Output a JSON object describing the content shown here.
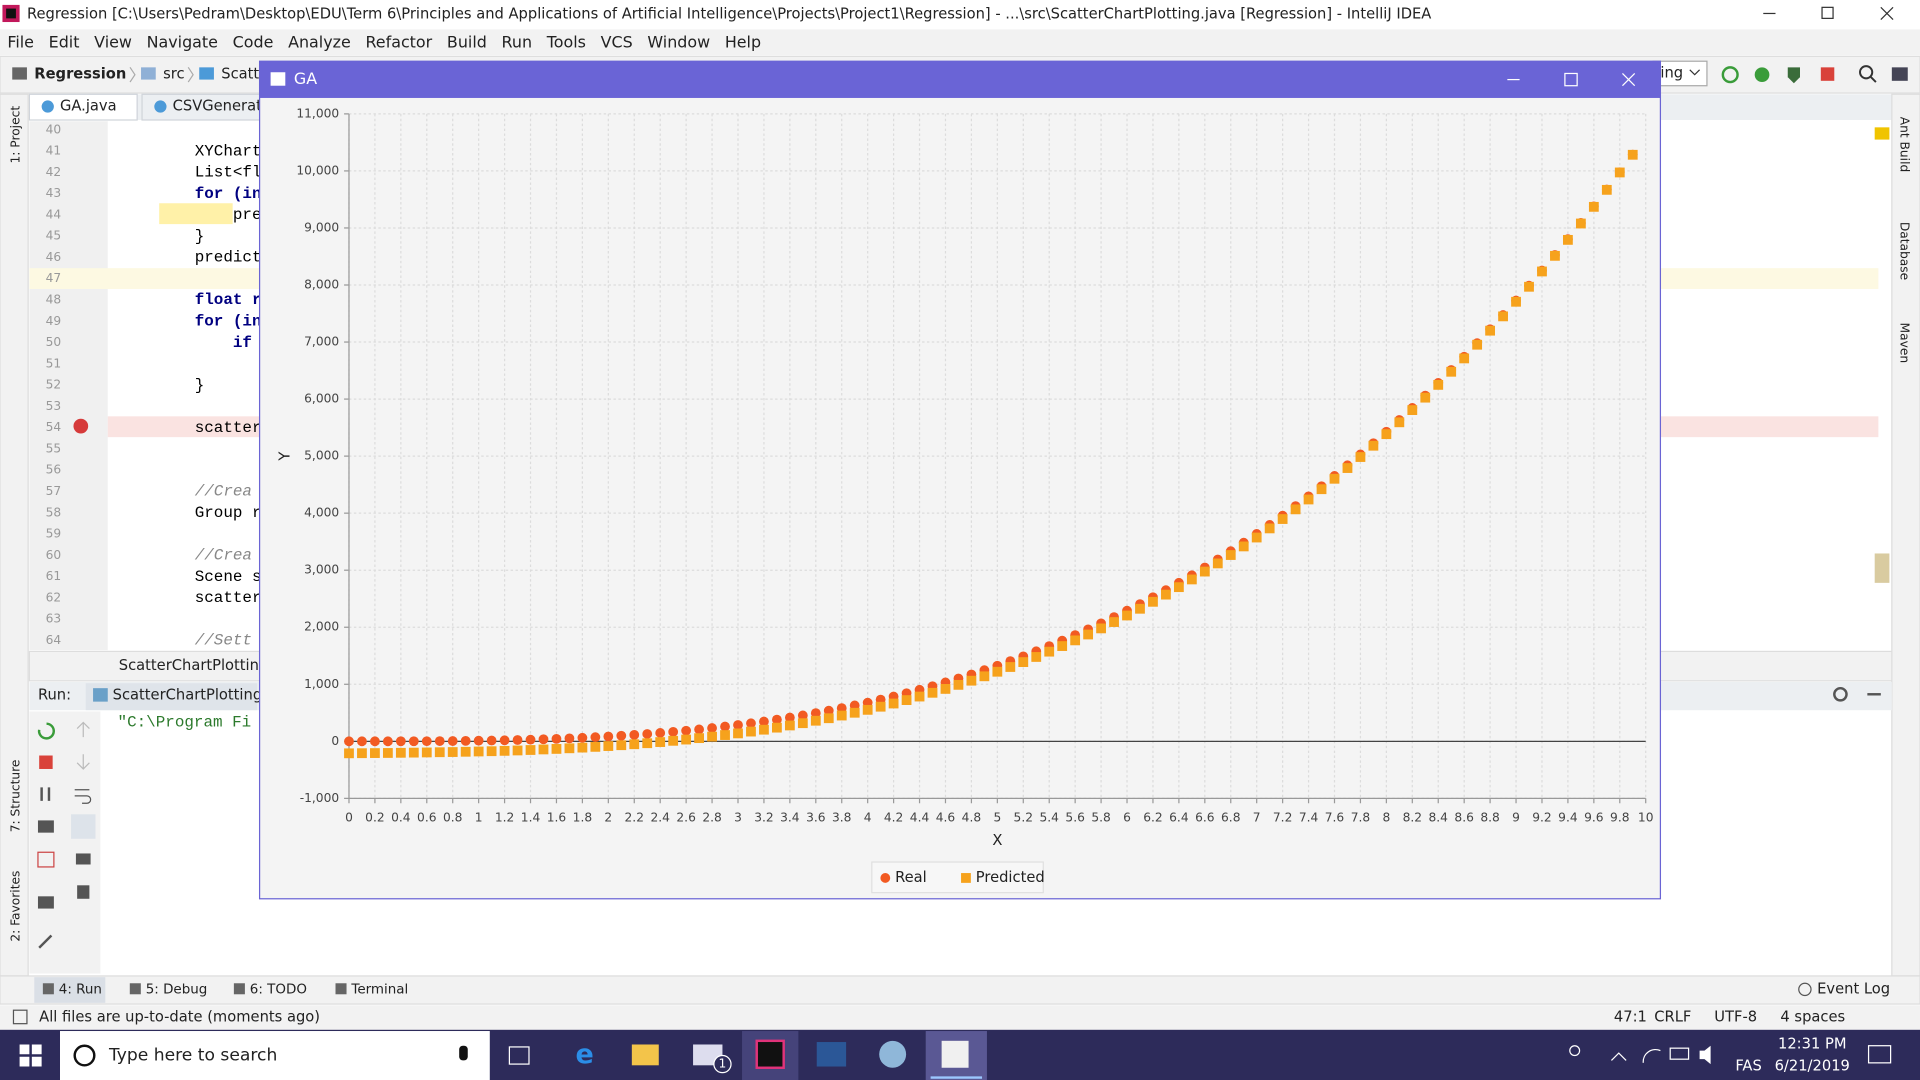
{
  "window": {
    "title": "Regression [C:\\Users\\Pedram\\Desktop\\EDU\\Term 6\\Principles and Applications of Artificial Intelligence\\Projects\\Project1\\Regression] - ...\\src\\ScatterChartPlotting.java [Regression] - IntelliJ IDEA"
  },
  "menu": [
    "File",
    "Edit",
    "View",
    "Navigate",
    "Code",
    "Analyze",
    "Refactor",
    "Build",
    "Run",
    "Tools",
    "VCS",
    "Window",
    "Help"
  ],
  "breadcrumb": [
    "Regression",
    "src",
    "ScatterC"
  ],
  "run_config": "ing",
  "tabs": [
    "GA.java",
    "CSVGenerato"
  ],
  "editor": {
    "line_numbers": [
      40,
      41,
      42,
      43,
      44,
      45,
      46,
      47,
      48,
      49,
      50,
      51,
      52,
      53,
      54,
      55,
      56,
      57,
      58,
      59,
      60,
      61,
      62,
      63,
      64
    ],
    "lines": [
      {
        "line": 41,
        "text": "XYChart"
      },
      {
        "line": 42,
        "text": "List<fl"
      },
      {
        "line": 43,
        "text": "for (in"
      },
      {
        "line": 44,
        "text": "    pre"
      },
      {
        "line": 45,
        "text": "}"
      },
      {
        "line": 46,
        "text": "predict"
      },
      {
        "line": 48,
        "text": "float r"
      },
      {
        "line": 49,
        "text": "for (in"
      },
      {
        "line": 50,
        "text": "    if"
      },
      {
        "line": 52,
        "text": "}"
      },
      {
        "line": 54,
        "text": "scatter"
      },
      {
        "line": 57,
        "text": "//Crea"
      },
      {
        "line": 58,
        "text": "Group r"
      },
      {
        "line": 60,
        "text": "//Crea"
      },
      {
        "line": 61,
        "text": "Scene s"
      },
      {
        "line": 62,
        "text": "scatter"
      },
      {
        "line": 64,
        "text": "//Sett"
      }
    ],
    "breadcrumb": "ScatterChartPlotting"
  },
  "side_tools_left": [
    "1: Project",
    "7: Structure",
    "2: Favorites"
  ],
  "side_tools_right": [
    "Ant Build",
    "Database",
    "Maven"
  ],
  "run_panel": {
    "label": "Run:",
    "tab": "ScatterChartPlotting",
    "output": "\"C:\\Program Fi"
  },
  "tool_tabs": [
    "4: Run",
    "5: Debug",
    "6: TODO",
    "Terminal"
  ],
  "event_log": "Event Log",
  "status": {
    "message": "All files are up-to-date (moments ago)",
    "items": [
      "47:1",
      "CRLF",
      "UTF-8",
      "4 spaces"
    ]
  },
  "taskbar": {
    "search": "Type here to search",
    "badge": "1",
    "lang": "FAS",
    "time": "12:31 PM",
    "date": "6/21/2019"
  },
  "ga_window": {
    "title": "GA"
  },
  "chart_data": {
    "type": "scatter",
    "xlabel": "X",
    "ylabel": "Y",
    "x": [
      0,
      0.1,
      0.2,
      0.3,
      0.4,
      0.5,
      0.6,
      0.7,
      0.8,
      0.9,
      1,
      1.1,
      1.2,
      1.3,
      1.4,
      1.5,
      1.6,
      1.7,
      1.8,
      1.9,
      2,
      2.1,
      2.2,
      2.3,
      2.4,
      2.5,
      2.6,
      2.7,
      2.8,
      2.9,
      3,
      3.1,
      3.2,
      3.3,
      3.4,
      3.5,
      3.6,
      3.7,
      3.8,
      3.9,
      4,
      4.1,
      4.2,
      4.3,
      4.4,
      4.5,
      4.6,
      4.7,
      4.8,
      4.9,
      5,
      5.1,
      5.2,
      5.3,
      5.4,
      5.5,
      5.6,
      5.7,
      5.8,
      5.9,
      6,
      6.1,
      6.2,
      6.3,
      6.4,
      6.5,
      6.6,
      6.7,
      6.8,
      6.9,
      7,
      7.1,
      7.2,
      7.3,
      7.4,
      7.5,
      7.6,
      7.7,
      7.8,
      7.9,
      8,
      8.1,
      8.2,
      8.3,
      8.4,
      8.5,
      8.6,
      8.7,
      8.8,
      8.9,
      9,
      9.1,
      9.2,
      9.3,
      9.4,
      9.5,
      9.6,
      9.7,
      9.8,
      9.9
    ],
    "series": [
      {
        "name": "Real",
        "color": "#f25a22",
        "marker": "circle",
        "values": [
          0,
          0,
          0,
          0,
          1,
          1,
          2,
          4,
          5,
          8,
          11,
          14,
          18,
          23,
          29,
          36,
          43,
          52,
          62,
          73,
          85,
          98,
          113,
          129,
          147,
          166,
          186,
          209,
          233,
          259,
          286,
          316,
          347,
          381,
          417,
          454,
          495,
          537,
          582,
          629,
          678,
          731,
          785,
          843,
          903,
          966,
          1032,
          1101,
          1172,
          1247,
          1325,
          1406,
          1490,
          1578,
          1669,
          1764,
          1862,
          1963,
          2068,
          2177,
          2290,
          2406,
          2526,
          2650,
          2779,
          2911,
          3047,
          3188,
          3333,
          3482,
          3636,
          3794,
          3956,
          4124,
          4295,
          4472,
          4653,
          4839,
          5030,
          5226,
          5427,
          5633,
          5845,
          6061,
          6283,
          6510,
          6742,
          6980,
          7224,
          7473,
          7727,
          7988,
          8254,
          8526,
          8804,
          9088,
          9378,
          9674,
          9977,
          10285
        ]
      },
      {
        "name": "Predicted",
        "color": "#f6a21c",
        "marker": "square",
        "values": [
          -210,
          -208,
          -206,
          -204,
          -201,
          -198,
          -195,
          -191,
          -188,
          -183,
          -178,
          -173,
          -167,
          -160,
          -152,
          -142,
          -133,
          -122,
          -110,
          -97,
          -83,
          -68,
          -51,
          -33,
          -13,
          9,
          31,
          56,
          82,
          110,
          139,
          171,
          204,
          240,
          278,
          318,
          361,
          405,
          452,
          501,
          552,
          607,
          663,
          723,
          785,
          851,
          919,
          990,
          1063,
          1140,
          1220,
          1303,
          1389,
          1479,
          1572,
          1670,
          1770,
          1873,
          1980,
          2091,
          2206,
          2324,
          2446,
          2572,
          2703,
          2838,
          2976,
          3119,
          3266,
          3417,
          3573,
          3733,
          3897,
          4067,
          4240,
          4420,
          4603,
          4791,
          4984,
          5182,
          5385,
          5593,
          5807,
          6025,
          6249,
          6479,
          6713,
          6953,
          7199,
          7450,
          7706,
          7969,
          8237,
          8511,
          8791,
          9078,
          9370,
          9668,
          9973,
          10283
        ]
      }
    ],
    "xlim": [
      0,
      10
    ],
    "ylim": [
      -1000,
      11000
    ],
    "xticks": [
      0,
      0.2,
      0.4,
      0.6,
      0.8,
      1,
      1.2,
      1.4,
      1.6,
      1.8,
      2,
      2.2,
      2.4,
      2.6,
      2.8,
      3,
      3.2,
      3.4,
      3.6,
      3.8,
      4,
      4.2,
      4.4,
      4.6,
      4.8,
      5,
      5.2,
      5.4,
      5.6,
      5.8,
      6,
      6.2,
      6.4,
      6.6,
      6.8,
      7,
      7.2,
      7.4,
      7.6,
      7.8,
      8,
      8.2,
      8.4,
      8.6,
      8.8,
      9,
      9.2,
      9.4,
      9.6,
      9.8,
      10
    ],
    "yticks": [
      {
        "value": -1000,
        "label": "-1,000"
      },
      0,
      {
        "value": 1000,
        "label": "1,000"
      },
      {
        "value": 2000,
        "label": "2,000"
      },
      {
        "value": 3000,
        "label": "3,000"
      },
      {
        "value": 4000,
        "label": "4,000"
      },
      {
        "value": 5000,
        "label": "5,000"
      },
      {
        "value": 6000,
        "label": "6,000"
      },
      {
        "value": 7000,
        "label": "7,000"
      },
      {
        "value": 8000,
        "label": "8,000"
      },
      {
        "value": 9000,
        "label": "9,000"
      },
      {
        "value": 10000,
        "label": "10,000"
      },
      {
        "value": 11000,
        "label": "11,000"
      }
    ],
    "grid": true,
    "zero_line": true,
    "legend": "bottom"
  }
}
